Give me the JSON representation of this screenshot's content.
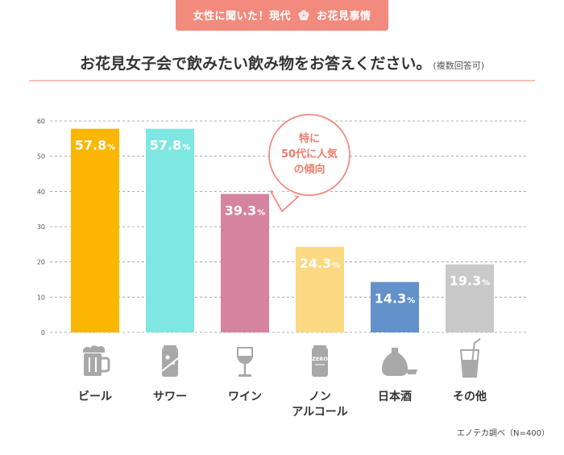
{
  "header": {
    "badge_prefix": "女性に聞いた！現代",
    "badge_suffix": "お花見事情",
    "badge_icon": "sakura-flower-icon",
    "title": "お花見女子会で飲みたい飲み物をお答えください。",
    "title_note": "(複数回答可)"
  },
  "colors": {
    "badge": "#f28b7d",
    "callout_border": "#f28b7d",
    "callout_text": "#f07b6b",
    "grid": "#999999",
    "icon": "#a8a8a8"
  },
  "callout": {
    "lines": [
      "特に",
      "50代に人気",
      "の傾向"
    ]
  },
  "chart_data": {
    "type": "bar",
    "title": "お花見女子会で飲みたい飲み物をお答えください。",
    "xlabel": "",
    "ylabel": "",
    "ylim": [
      0,
      60
    ],
    "yticks": [
      0,
      10,
      20,
      30,
      40,
      50,
      60
    ],
    "grid": true,
    "unit": "%",
    "categories": [
      {
        "label": [
          "ビール"
        ],
        "icon": "beer-mug-icon"
      },
      {
        "label": [
          "サワー"
        ],
        "icon": "soda-can-icon"
      },
      {
        "label": [
          "ワイン"
        ],
        "icon": "wine-glass-icon"
      },
      {
        "label": [
          "ノン",
          "アルコール"
        ],
        "icon": "zero-can-icon"
      },
      {
        "label": [
          "日本酒"
        ],
        "icon": "sake-bottle-icon"
      },
      {
        "label": [
          "その他"
        ],
        "icon": "drinking-glass-icon"
      }
    ],
    "values": [
      57.8,
      57.8,
      39.3,
      24.3,
      14.3,
      19.3
    ],
    "value_labels": [
      "57.8",
      "57.8",
      "39.3",
      "24.3",
      "14.3",
      "19.3"
    ],
    "bar_colors": [
      "#fab600",
      "#7fe7e1",
      "#d5839f",
      "#fcd983",
      "#6391ca",
      "#c9c9c9"
    ]
  },
  "icon_text": {
    "zero_can": "ZERO"
  },
  "footer": {
    "source": "エノテカ調べ（N=400）"
  }
}
